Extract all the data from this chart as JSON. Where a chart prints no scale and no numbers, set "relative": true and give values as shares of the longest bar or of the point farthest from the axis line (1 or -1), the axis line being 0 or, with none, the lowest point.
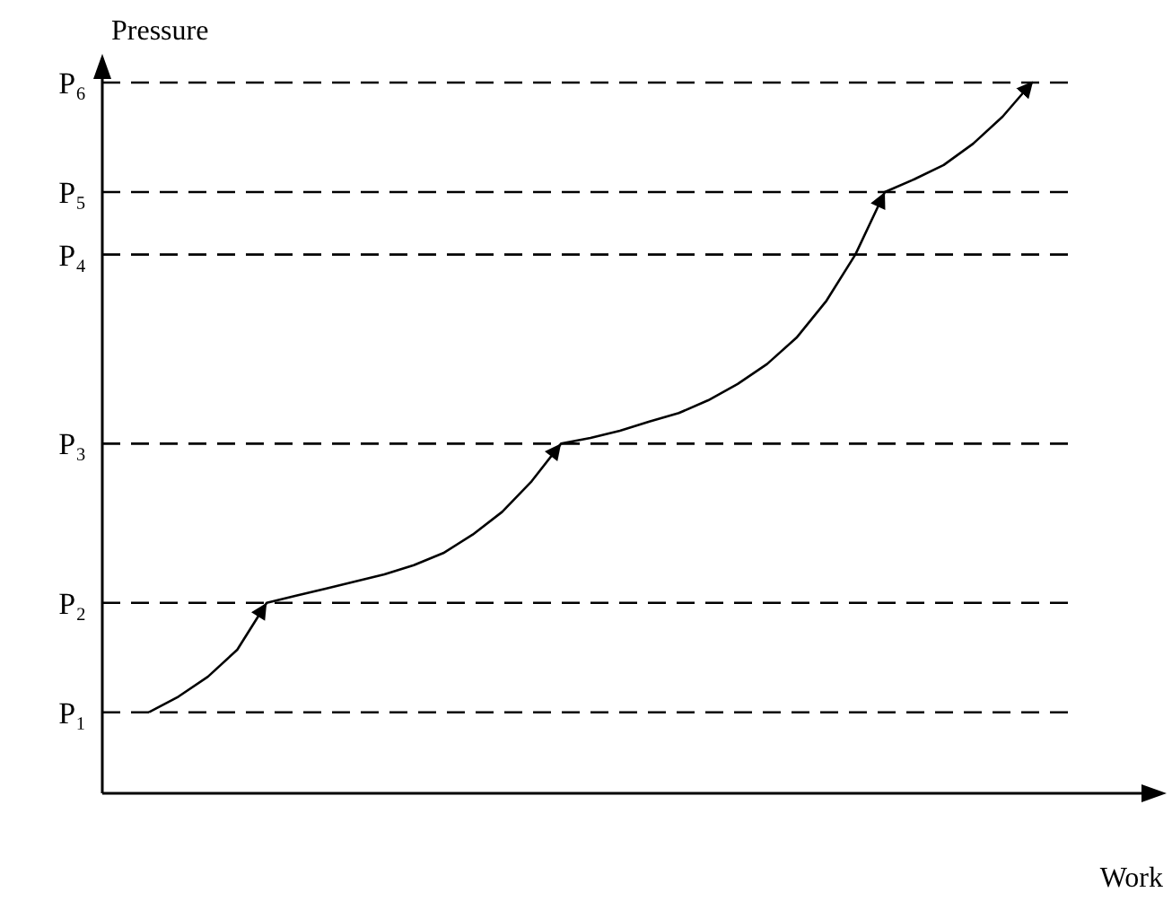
{
  "chart_data": {
    "type": "line",
    "relative": true,
    "xlabel": "Work",
    "ylabel": "Pressure",
    "marker": "none",
    "line_style": "solid",
    "categories": [
      null,
      null,
      null,
      null,
      null,
      null,
      null,
      null,
      null,
      null,
      null,
      null,
      null,
      null,
      null,
      null,
      null,
      null,
      null,
      null,
      null,
      null,
      null,
      null,
      null,
      null,
      null,
      null,
      null,
      null,
      null
    ],
    "series": [
      {
        "color": "#000000",
        "values": [
          0.114,
          0.136,
          0.164,
          0.202,
          0.268,
          0.278,
          0.288,
          0.298,
          0.308,
          0.321,
          0.338,
          0.364,
          0.396,
          0.439,
          0.492,
          0.5,
          0.51,
          0.523,
          0.535,
          0.553,
          0.576,
          0.604,
          0.641,
          0.692,
          0.758,
          0.846,
          0.864,
          0.884,
          0.914,
          0.952,
          1
        ]
      }
    ],
    "ref_lines": [
      {
        "axis": "y",
        "value": 0.114,
        "label": "P₁",
        "color": "#000000",
        "line_style": "dashed"
      },
      {
        "axis": "y",
        "value": 0.268,
        "label": "P₂",
        "color": "#000000",
        "line_style": "dashed"
      },
      {
        "axis": "y",
        "value": 0.492,
        "label": "P₃",
        "color": "#000000",
        "line_style": "dashed"
      },
      {
        "axis": "y",
        "value": 0.758,
        "label": "P₄",
        "color": "#000000",
        "line_style": "dashed"
      },
      {
        "axis": "y",
        "value": 0.846,
        "label": "P₅",
        "color": "#000000",
        "line_style": "dashed"
      },
      {
        "axis": "y",
        "value": 1,
        "label": "P₆",
        "color": "#000000",
        "line_style": "dashed"
      }
    ]
  }
}
